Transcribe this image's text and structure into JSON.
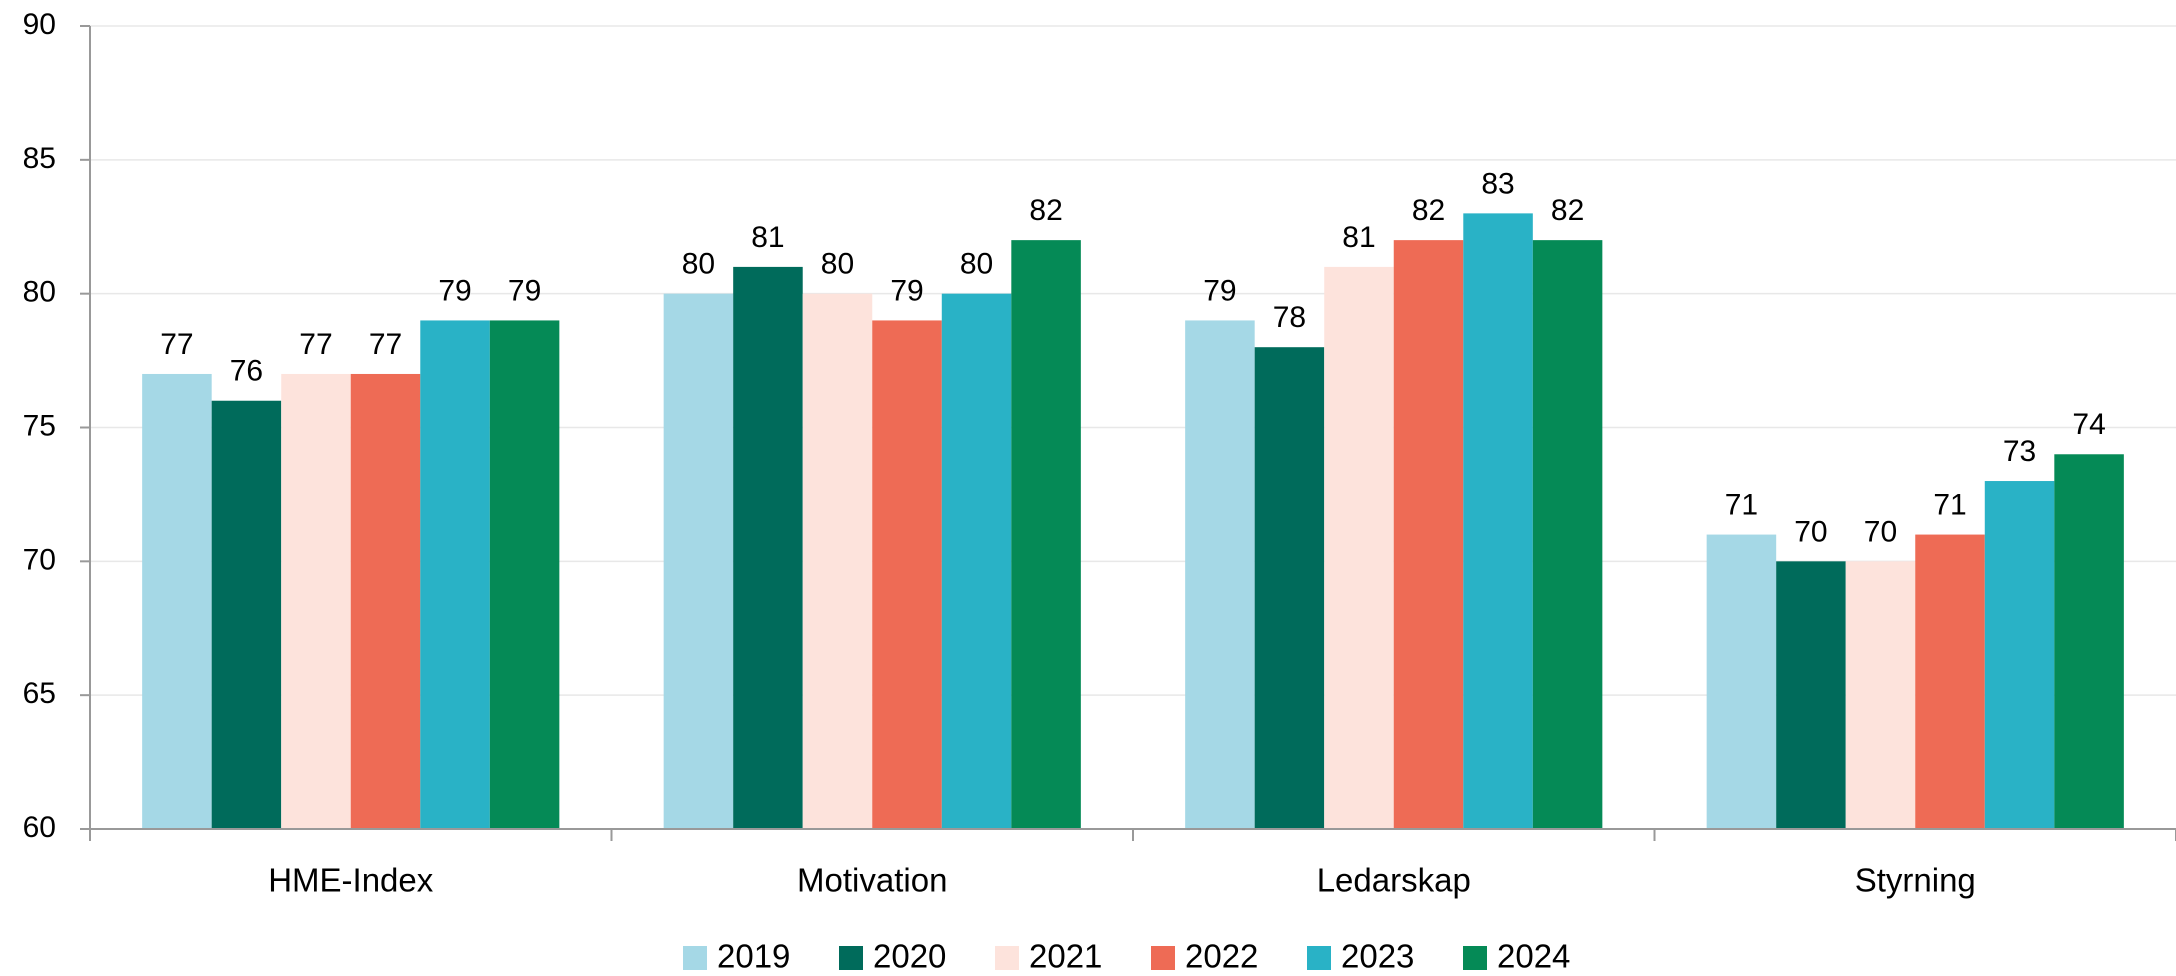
{
  "chart_data": {
    "type": "bar",
    "categories": [
      "HME-Index",
      "Motivation",
      "Ledarskap",
      "Styrning"
    ],
    "series": [
      {
        "name": "2019",
        "color": "#a5d8e6",
        "values": [
          77,
          80,
          79,
          71
        ]
      },
      {
        "name": "2020",
        "color": "#006b5b",
        "values": [
          76,
          81,
          78,
          70
        ]
      },
      {
        "name": "2021",
        "color": "#fde3dc",
        "values": [
          77,
          80,
          81,
          70
        ]
      },
      {
        "name": "2022",
        "color": "#ee6b55",
        "values": [
          77,
          79,
          82,
          71
        ]
      },
      {
        "name": "2023",
        "color": "#29b2c6",
        "values": [
          79,
          80,
          83,
          73
        ]
      },
      {
        "name": "2024",
        "color": "#058a56",
        "values": [
          79,
          82,
          82,
          74
        ]
      }
    ],
    "ylim": [
      60,
      90
    ],
    "yticks": [
      60,
      65,
      70,
      75,
      80,
      85,
      90
    ],
    "grid": true,
    "legend": "bottom"
  }
}
